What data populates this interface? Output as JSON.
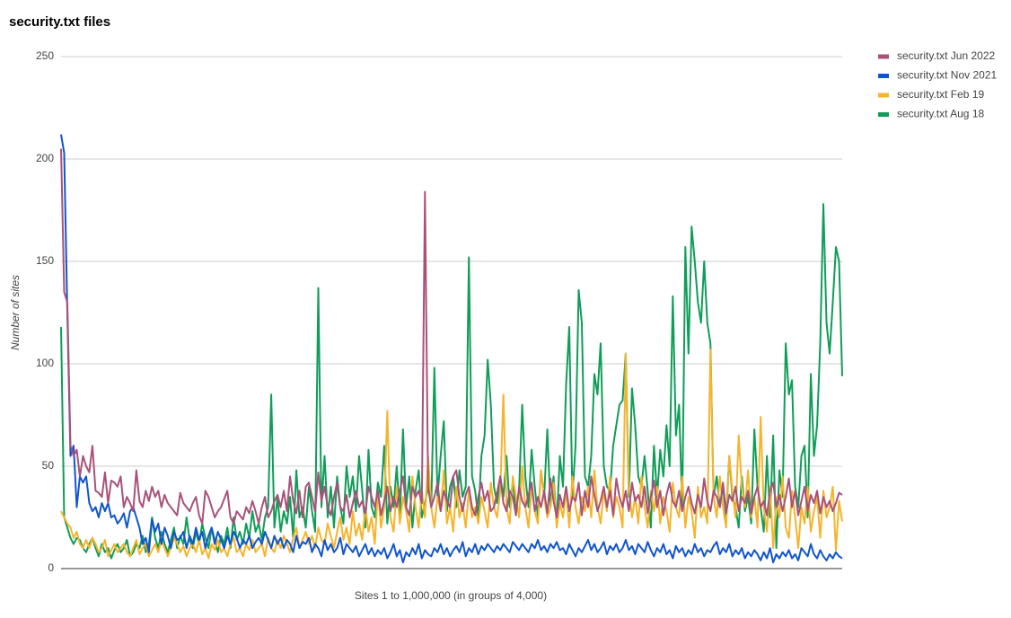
{
  "chart_data": {
    "type": "line",
    "title": "security.txt files",
    "x_label": "Sites 1 to 1,000,000 (in groups of 4,000)",
    "y_label": "Number of sites",
    "ylim": [
      0,
      250
    ],
    "yticks": [
      0,
      50,
      100,
      150,
      200,
      250
    ],
    "grid": true,
    "legend": "right",
    "series": [
      {
        "name": "security.txt Jun 2022",
        "color": "#a8527a",
        "values": [
          205,
          135,
          130,
          60,
          55,
          58,
          45,
          55,
          50,
          47,
          60,
          38,
          37,
          35,
          47,
          32,
          43,
          42,
          40,
          45,
          30,
          35,
          32,
          28,
          48,
          33,
          30,
          38,
          33,
          40,
          35,
          38,
          30,
          36,
          32,
          30,
          28,
          26,
          37,
          32,
          30,
          28,
          32,
          35,
          26,
          22,
          38,
          35,
          30,
          25,
          28,
          30,
          34,
          38,
          25,
          22,
          28,
          26,
          24,
          30,
          27,
          33,
          28,
          22,
          30,
          35,
          25,
          28,
          33,
          36,
          30,
          38,
          28,
          45,
          33,
          27,
          38,
          25,
          40,
          42,
          35,
          28,
          47,
          33,
          40,
          30,
          26,
          35,
          42,
          30,
          28,
          36,
          25,
          32,
          38,
          30,
          33,
          27,
          40,
          35,
          30,
          38,
          26,
          33,
          40,
          28,
          35,
          30,
          38,
          45,
          30,
          26,
          40,
          35,
          38,
          32,
          184,
          40,
          30,
          35,
          42,
          28,
          38,
          33,
          30,
          45,
          48,
          35,
          28,
          36,
          40,
          30,
          26,
          35,
          42,
          33,
          38,
          28,
          30,
          37,
          45,
          32,
          28,
          38,
          35,
          26,
          40,
          33,
          30,
          36,
          42,
          28,
          35,
          30,
          38,
          27,
          44,
          33,
          25,
          36,
          30,
          40,
          28,
          35,
          33,
          42,
          26,
          38,
          30,
          45,
          36,
          28,
          33,
          40,
          30,
          38,
          26,
          44,
          35,
          30,
          38,
          28,
          42,
          33,
          36,
          30,
          40,
          27,
          35,
          43,
          30,
          38,
          26,
          36,
          42,
          33,
          30,
          38,
          28,
          35,
          40,
          32,
          27,
          36,
          30,
          44,
          33,
          28,
          38,
          35,
          30,
          42,
          27,
          36,
          33,
          40,
          28,
          35,
          32,
          38,
          27,
          35,
          40,
          30,
          33,
          26,
          38,
          42,
          30,
          36,
          28,
          35,
          44,
          30,
          38,
          26,
          33,
          40,
          28,
          36,
          32,
          38,
          27,
          35,
          30,
          33,
          28,
          32,
          37,
          36
        ]
      },
      {
        "name": "security.txt Nov 2021",
        "color": "#1155cc",
        "values": [
          212,
          203,
          125,
          55,
          60,
          30,
          45,
          42,
          45,
          32,
          28,
          30,
          25,
          32,
          28,
          32,
          25,
          26,
          22,
          24,
          27,
          20,
          28,
          30,
          25,
          20,
          12,
          15,
          8,
          24,
          18,
          22,
          12,
          20,
          16,
          10,
          18,
          14,
          15,
          18,
          10,
          16,
          12,
          20,
          14,
          18,
          10,
          16,
          20,
          12,
          18,
          14,
          10,
          16,
          12,
          18,
          15,
          10,
          14,
          12,
          16,
          10,
          13,
          15,
          12,
          18,
          14,
          10,
          16,
          12,
          15,
          10,
          14,
          12,
          8,
          16,
          10,
          13,
          12,
          15,
          8,
          12,
          10,
          6,
          14,
          9,
          12,
          8,
          10,
          15,
          7,
          12,
          10,
          8,
          11,
          6,
          9,
          12,
          7,
          10,
          6,
          9,
          7,
          10,
          5,
          8,
          12,
          6,
          9,
          3,
          8,
          6,
          10,
          7,
          12,
          5,
          9,
          7,
          6,
          10,
          8,
          12,
          7,
          10,
          6,
          9,
          11,
          8,
          13,
          6,
          10,
          8,
          12,
          7,
          11,
          9,
          12,
          10,
          8,
          11,
          9,
          12,
          10,
          8,
          13,
          11,
          9,
          12,
          10,
          8,
          12,
          10,
          14,
          9,
          11,
          8,
          12,
          10,
          13,
          9,
          10,
          7,
          12,
          9,
          6,
          10,
          8,
          11,
          14,
          9,
          12,
          8,
          10,
          13,
          7,
          11,
          9,
          12,
          8,
          10,
          14,
          9,
          11,
          7,
          12,
          10,
          8,
          13,
          9,
          6,
          10,
          8,
          12,
          7,
          9,
          5,
          11,
          8,
          10,
          6,
          9,
          7,
          12,
          8,
          10,
          6,
          9,
          8,
          11,
          13,
          7,
          10,
          8,
          12,
          6,
          9,
          7,
          10,
          5,
          8,
          6,
          9,
          7,
          4,
          8,
          5,
          10,
          3,
          7,
          5,
          8,
          6,
          9,
          5,
          7,
          4,
          10,
          8,
          6,
          12,
          7,
          5,
          9,
          6,
          4,
          7,
          5,
          8,
          6,
          5
        ]
      },
      {
        "name": "security.txt Feb 19",
        "color": "#f6b42b",
        "values": [
          28,
          25,
          22,
          20,
          15,
          18,
          12,
          10,
          14,
          10,
          15,
          12,
          8,
          10,
          14,
          6,
          9,
          12,
          8,
          10,
          12,
          8,
          6,
          10,
          14,
          7,
          10,
          12,
          6,
          9,
          12,
          8,
          14,
          10,
          6,
          10,
          15,
          12,
          8,
          11,
          6,
          10,
          12,
          8,
          14,
          7,
          10,
          5,
          12,
          9,
          14,
          8,
          10,
          6,
          12,
          15,
          8,
          10,
          6,
          12,
          9,
          14,
          8,
          10,
          12,
          6,
          15,
          10,
          8,
          14,
          10,
          16,
          12,
          8,
          15,
          20,
          10,
          14,
          18,
          12,
          16,
          10,
          20,
          14,
          12,
          22,
          16,
          10,
          18,
          25,
          14,
          20,
          12,
          28,
          16,
          22,
          14,
          30,
          18,
          25,
          12,
          38,
          20,
          30,
          77,
          25,
          18,
          40,
          22,
          35,
          28,
          18,
          45,
          30,
          20,
          38,
          25,
          55,
          30,
          20,
          35,
          28,
          48,
          22,
          30,
          18,
          40,
          25,
          32,
          20,
          38,
          25,
          30,
          22,
          35,
          28,
          20,
          42,
          30,
          25,
          38,
          85,
          30,
          22,
          45,
          35,
          25,
          50,
          30,
          20,
          40,
          28,
          22,
          48,
          35,
          25,
          30,
          42,
          20,
          32,
          25,
          38,
          20,
          45,
          30,
          22,
          35,
          28,
          40,
          25,
          48,
          30,
          22,
          38,
          28,
          45,
          25,
          35,
          30,
          20,
          105,
          40,
          25,
          35,
          22,
          45,
          30,
          20,
          38,
          28,
          40,
          22,
          35,
          28,
          18,
          42,
          30,
          25,
          45,
          20,
          35,
          28,
          15,
          40,
          25,
          30,
          22,
          107,
          35,
          25,
          45,
          30,
          20,
          55,
          38,
          25,
          65,
          40,
          30,
          48,
          25,
          35,
          20,
          74,
          30,
          18,
          40,
          10,
          35,
          25,
          45,
          20,
          15,
          38,
          25,
          10,
          30,
          22,
          40,
          18,
          28,
          35,
          15,
          38,
          25,
          30,
          40,
          9,
          33,
          23
        ]
      },
      {
        "name": "security.txt Aug 18",
        "color": "#109d58",
        "values": [
          118,
          25,
          20,
          15,
          12,
          15,
          14,
          10,
          8,
          12,
          15,
          10,
          6,
          12,
          8,
          10,
          5,
          9,
          12,
          8,
          10,
          14,
          6,
          8,
          12,
          10,
          16,
          8,
          12,
          25,
          15,
          10,
          18,
          12,
          8,
          14,
          20,
          10,
          16,
          12,
          25,
          14,
          10,
          18,
          12,
          22,
          15,
          10,
          20,
          14,
          8,
          16,
          12,
          20,
          10,
          25,
          14,
          18,
          12,
          22,
          15,
          28,
          18,
          22,
          14,
          25,
          30,
          85,
          20,
          35,
          18,
          28,
          22,
          35,
          15,
          48,
          25,
          30,
          20,
          40,
          28,
          18,
          137,
          30,
          55,
          25,
          40,
          20,
          45,
          30,
          22,
          50,
          35,
          45,
          28,
          55,
          38,
          20,
          58,
          30,
          25,
          42,
          35,
          60,
          22,
          40,
          30,
          50,
          25,
          68,
          30,
          45,
          20,
          38,
          48,
          25,
          32,
          40,
          30,
          98,
          35,
          55,
          72,
          28,
          40,
          45,
          30,
          48,
          35,
          40,
          152,
          45,
          38,
          25,
          55,
          65,
          102,
          80,
          40,
          32,
          45,
          35,
          55,
          30,
          42,
          28,
          38,
          80,
          45,
          30,
          58,
          40,
          25,
          48,
          35,
          68,
          30,
          45,
          22,
          55,
          40,
          90,
          118,
          35,
          60,
          136,
          120,
          45,
          40,
          55,
          95,
          85,
          110,
          50,
          40,
          38,
          60,
          70,
          80,
          82,
          105,
          35,
          88,
          70,
          45,
          40,
          55,
          38,
          20,
          60,
          35,
          58,
          45,
          70,
          50,
          133,
          65,
          80,
          30,
          157,
          105,
          167,
          150,
          130,
          120,
          150,
          120,
          110,
          35,
          45,
          30,
          40,
          25,
          55,
          35,
          30,
          20,
          45,
          28,
          35,
          22,
          68,
          40,
          30,
          18,
          55,
          25,
          65,
          10,
          48,
          35,
          110,
          85,
          92,
          40,
          30,
          55,
          60,
          25,
          95,
          55,
          70,
          110,
          178,
          120,
          105,
          130,
          157,
          150,
          94
        ]
      }
    ]
  }
}
